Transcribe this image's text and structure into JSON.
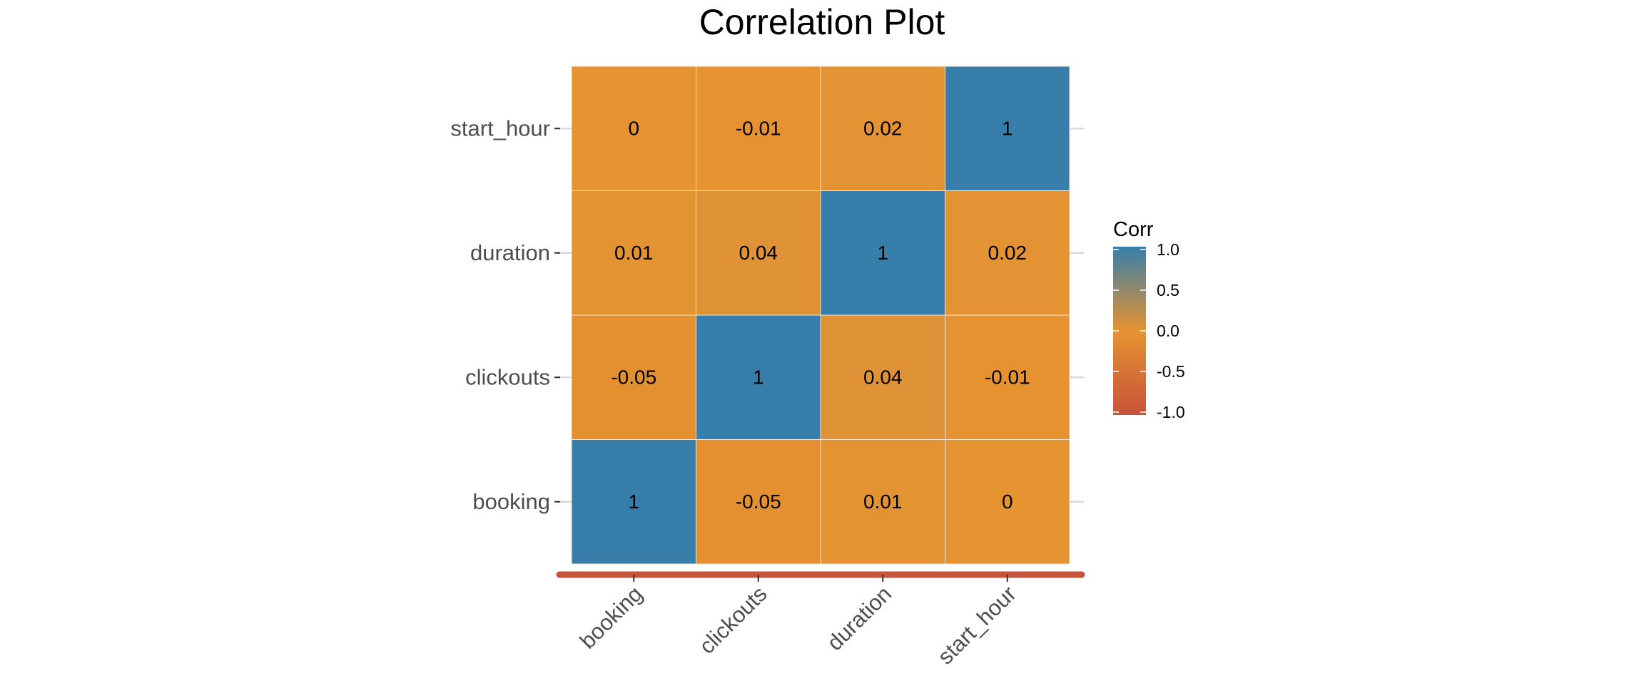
{
  "chart_data": {
    "type": "heatmap",
    "title": "Correlation Plot",
    "x_categories": [
      "booking",
      "clickouts",
      "duration",
      "start_hour"
    ],
    "y_categories": [
      "booking",
      "clickouts",
      "duration",
      "start_hour"
    ],
    "matrix": [
      [
        1,
        -0.05,
        0.01,
        0
      ],
      [
        -0.05,
        1,
        0.04,
        -0.01
      ],
      [
        0.01,
        0.04,
        1,
        0.02
      ],
      [
        0,
        -0.01,
        0.02,
        1
      ]
    ],
    "legend": {
      "title": "Corr",
      "ticks": [
        "1.0",
        "0.5",
        "0.0",
        "-0.5",
        "-1.0"
      ],
      "tick_values": [
        1.0,
        0.5,
        0.0,
        -0.5,
        -1.0
      ],
      "range": [
        -1,
        1
      ]
    },
    "colors": {
      "low": "#C7533A",
      "mid": "#E69331",
      "high": "#377EAA",
      "text": "#000000",
      "axis_text": "#4D4D4D",
      "cell_border": "#F2E6D6",
      "axis_line": "#C7533A",
      "tick_grid": "#D9D9D9"
    }
  }
}
